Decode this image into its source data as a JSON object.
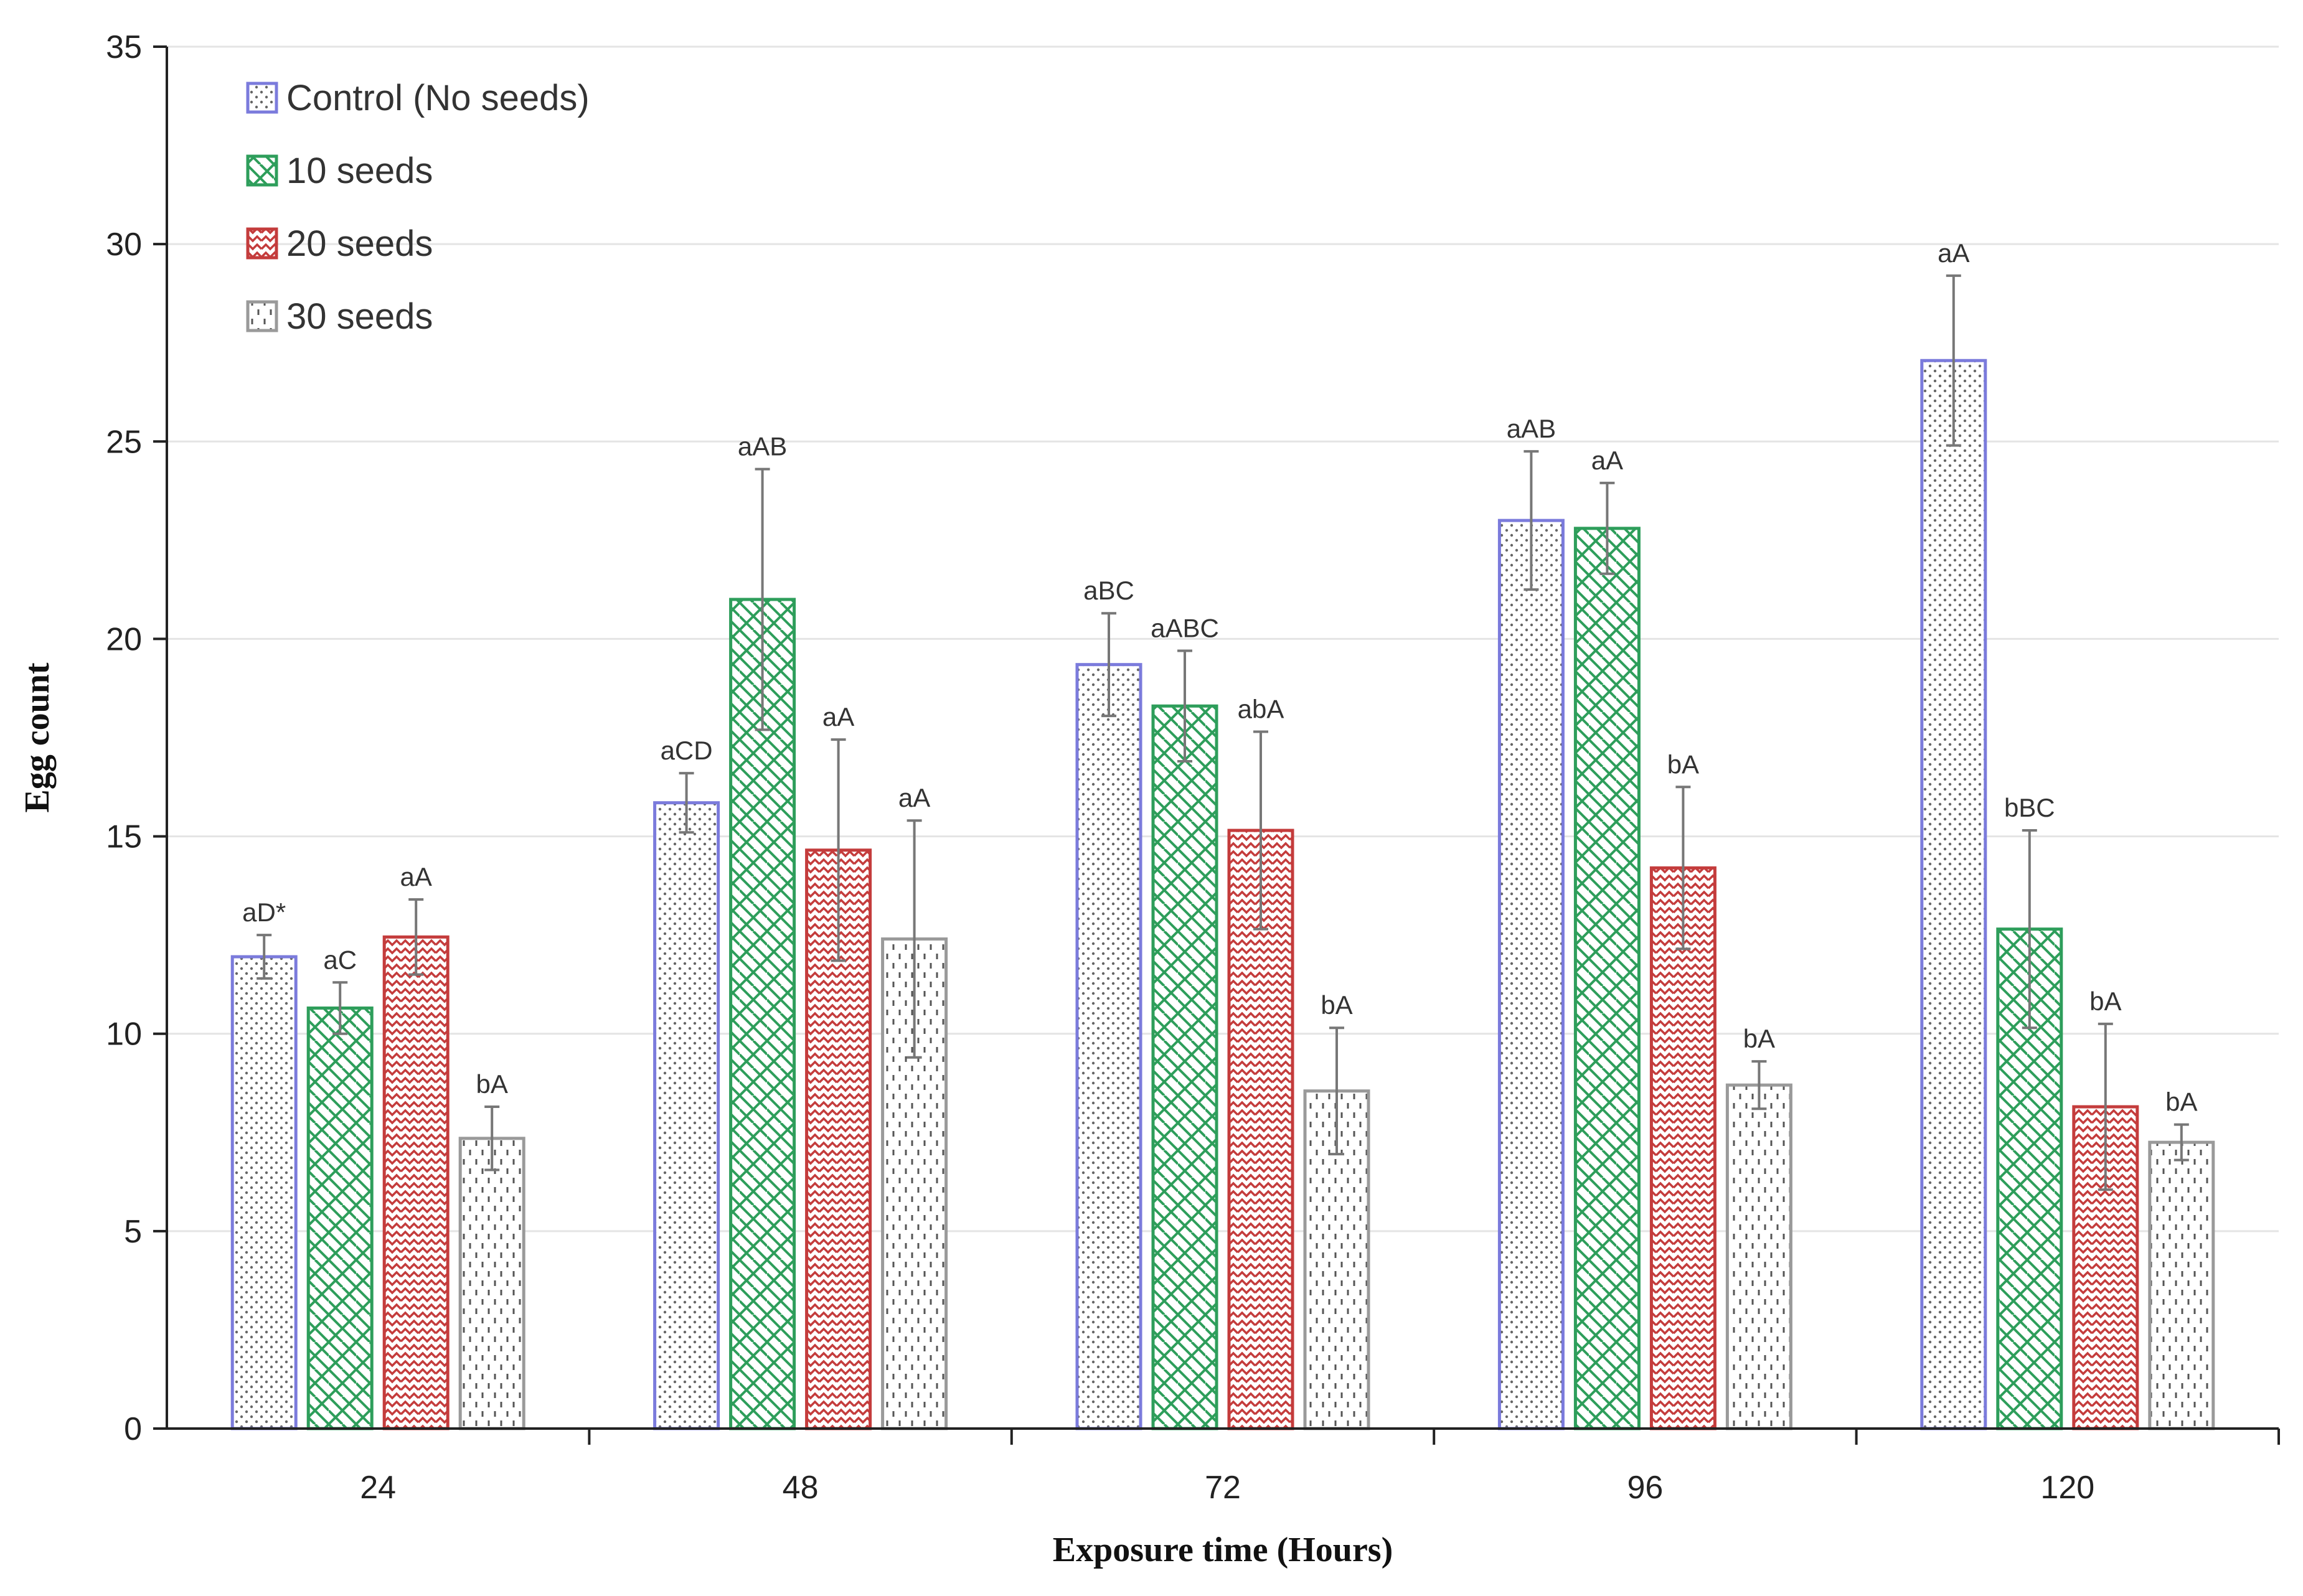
{
  "chart_data": {
    "type": "bar",
    "title": "",
    "xlabel": "Exposure time (Hours)",
    "ylabel": "Egg count",
    "ylim": [
      0,
      35
    ],
    "yticks": [
      0,
      5,
      10,
      15,
      20,
      25,
      30,
      35
    ],
    "grid": true,
    "legend_position": "top-left",
    "categories": [
      "24",
      "48",
      "72",
      "96",
      "120"
    ],
    "series": [
      {
        "name": "Control (No seeds)",
        "color": "#7b7bdc",
        "pattern": "dots",
        "values": [
          11.95,
          15.85,
          19.35,
          23.0,
          27.05
        ],
        "errors": [
          0.55,
          0.75,
          1.3,
          1.75,
          2.15
        ],
        "labels": [
          "aD*",
          "aCD",
          "aBC",
          "aAB",
          "aA"
        ]
      },
      {
        "name": "10 seeds",
        "color": "#2e9e5b",
        "pattern": "crosshatch",
        "values": [
          10.65,
          21.0,
          18.3,
          22.8,
          12.65
        ],
        "errors": [
          0.65,
          3.3,
          1.4,
          1.15,
          2.5
        ],
        "labels": [
          "aC",
          "aAB",
          "aABC",
          "aA",
          "bBC"
        ]
      },
      {
        "name": "20 seeds",
        "color": "#c43c3c",
        "pattern": "zigzag",
        "values": [
          12.45,
          14.65,
          15.15,
          14.2,
          8.15
        ],
        "errors": [
          0.95,
          2.8,
          2.5,
          2.05,
          2.1
        ],
        "labels": [
          "aA",
          "aA",
          "abA",
          "bA",
          "bA"
        ]
      },
      {
        "name": "30 seeds",
        "color": "#9a9a9a",
        "pattern": "dashes",
        "values": [
          7.35,
          12.4,
          8.55,
          8.7,
          7.25
        ],
        "errors": [
          0.8,
          3.0,
          1.6,
          0.6,
          0.45
        ],
        "labels": [
          "bA",
          "aA",
          "bA",
          "bA",
          "bA"
        ]
      }
    ]
  }
}
